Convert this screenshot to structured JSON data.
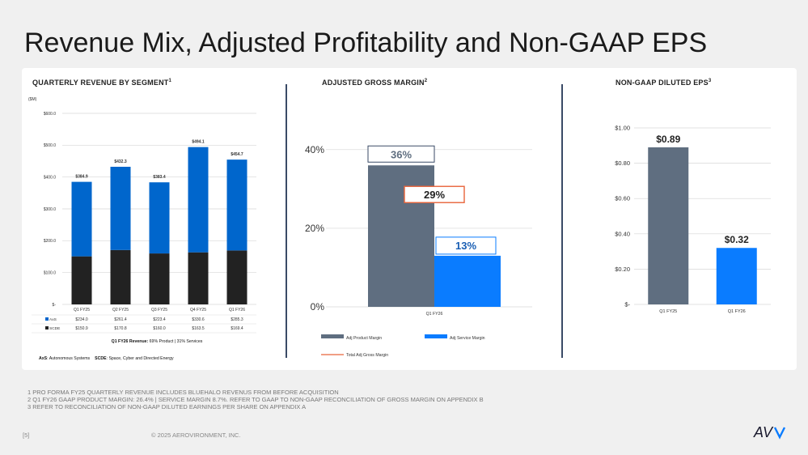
{
  "title": "Revenue Mix, Adjusted Profitability and Non-GAAP EPS",
  "footnotes": [
    "1 PRO FORMA FY25 QUARTERLY REVENUE INCLUDES BLUEHALO REVENUS FROM BEFORE ACQUISITION",
    "2 Q1 FY26 GAAP PRODUCT MARGIN: 26.4% | SERVICE MARGIN 8.7%.  REFER TO GAAP TO NON-GAAP RECONCILIATION OF GROSS MARGIN ON APPENDIX B",
    "3 REFER TO RECONCILIATION OF NON-GAAP DILUTED EARNINGS PER SHARE ON APPENDIX A"
  ],
  "page_number": "[5]",
  "copyright": "© 2025 AEROVIRONMENT, INC.",
  "logo_text": "AV",
  "colors": {
    "axs": "#0066cc",
    "scde": "#222222",
    "product": "#5f6e80",
    "service": "#0a7cff",
    "total": "#e8643a"
  },
  "chart_data": [
    {
      "type": "bar",
      "stacked": true,
      "title": "QUARTERLY REVENUE BY SEGMENT",
      "title_sup": "1",
      "unit": "($M)",
      "categories": [
        "Q1 FY25",
        "Q2 FY25",
        "Q3 FY25",
        "Q4 FY25",
        "Q1 FY26"
      ],
      "series": [
        {
          "name": "AxS",
          "values": [
            234.0,
            261.4,
            223.4,
            330.6,
            285.3
          ],
          "labels": [
            "$234.0",
            "$261.4",
            "$223.4",
            "$330.6",
            "$285.3"
          ]
        },
        {
          "name": "SCDE",
          "values": [
            150.9,
            170.8,
            160.0,
            163.5,
            169.4
          ],
          "labels": [
            "$150.9",
            "$170.8",
            "$160.0",
            "$163.5",
            "$169.4"
          ]
        }
      ],
      "totals": [
        384.9,
        432.3,
        383.4,
        494.1,
        454.7
      ],
      "total_labels": [
        "$384.9",
        "$432.3",
        "$383.4",
        "$494.1",
        "$454.7"
      ],
      "yticks": [
        0,
        100,
        200,
        300,
        400,
        500,
        600
      ],
      "ytick_labels": [
        "$-",
        "$100.0",
        "$200.0",
        "$300.0",
        "$400.0",
        "$500.0",
        "$600.0"
      ],
      "ylim": [
        0,
        600
      ],
      "note_bold": "Q1 FY26 Revenue:",
      "note_text": " 69% Product | 31% Services",
      "legend_axs_abbr": "AxS",
      "legend_axs_text": ": Autonomous Systems",
      "legend_scde_abbr": "SCDE",
      "legend_scde_text": ": Space, Cyber and Directed Energy"
    },
    {
      "type": "bar",
      "title": "ADJUSTED GROSS MARGIN",
      "title_sup": "2",
      "categories": [
        "Q1 FY26"
      ],
      "series": [
        {
          "name": "Adj Product Margin",
          "values": [
            36
          ],
          "label": "36%"
        },
        {
          "name": "Adj Service Margin",
          "values": [
            13
          ],
          "label": "13%"
        },
        {
          "name": "Total Adj Gross Margin",
          "values": [
            29
          ],
          "label": "29%"
        }
      ],
      "yticks": [
        0,
        20,
        40
      ],
      "ytick_labels": [
        "0%",
        "20%",
        "40%"
      ],
      "ylim": [
        0,
        48
      ]
    },
    {
      "type": "bar",
      "title": "NON-GAAP DILUTED EPS",
      "title_sup": "3",
      "categories": [
        "Q1 FY25",
        "Q1 FY26"
      ],
      "values": [
        0.89,
        0.32
      ],
      "value_labels": [
        "$0.89",
        "$0.32"
      ],
      "yticks": [
        0,
        0.2,
        0.4,
        0.6,
        0.8,
        1.0
      ],
      "ytick_labels": [
        "$-",
        "$0.20",
        "$0.40",
        "$0.60",
        "$0.80",
        "$1.00"
      ],
      "ylim": [
        0,
        1.0
      ]
    }
  ]
}
